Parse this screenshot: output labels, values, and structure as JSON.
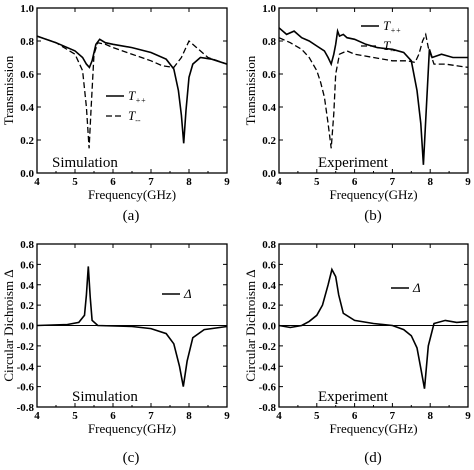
{
  "chart_data": [
    {
      "id": "a",
      "type": "line",
      "panel_label": "(a)",
      "inset_label": "Simulation",
      "xlabel": "Frequency(GHz)",
      "ylabel": "Transmission",
      "xlim": [
        4,
        9
      ],
      "ylim": [
        0,
        1.0
      ],
      "xticks": [
        "4",
        "5",
        "6",
        "7",
        "8",
        "9"
      ],
      "yticks": [
        "0.0",
        "0.2",
        "0.4",
        "0.6",
        "0.8",
        "1.0"
      ],
      "legend": [
        "T++",
        "T--"
      ],
      "legend_position": "center-right",
      "series": [
        {
          "name": "T++",
          "style": "solid",
          "points": [
            [
              4.0,
              0.83
            ],
            [
              4.5,
              0.79
            ],
            [
              5.0,
              0.74
            ],
            [
              5.2,
              0.7
            ],
            [
              5.3,
              0.66
            ],
            [
              5.38,
              0.64
            ],
            [
              5.45,
              0.68
            ],
            [
              5.55,
              0.78
            ],
            [
              5.65,
              0.81
            ],
            [
              5.8,
              0.79
            ],
            [
              6.0,
              0.78
            ],
            [
              6.5,
              0.76
            ],
            [
              7.0,
              0.73
            ],
            [
              7.4,
              0.69
            ],
            [
              7.6,
              0.63
            ],
            [
              7.72,
              0.5
            ],
            [
              7.8,
              0.35
            ],
            [
              7.86,
              0.18
            ],
            [
              7.92,
              0.38
            ],
            [
              8.0,
              0.58
            ],
            [
              8.1,
              0.66
            ],
            [
              8.3,
              0.7
            ],
            [
              8.6,
              0.69
            ],
            [
              9.0,
              0.66
            ]
          ]
        },
        {
          "name": "T--",
          "style": "dashed",
          "points": [
            [
              4.0,
              0.83
            ],
            [
              4.5,
              0.79
            ],
            [
              5.0,
              0.72
            ],
            [
              5.2,
              0.62
            ],
            [
              5.3,
              0.4
            ],
            [
              5.37,
              0.15
            ],
            [
              5.42,
              0.38
            ],
            [
              5.5,
              0.72
            ],
            [
              5.6,
              0.79
            ],
            [
              5.8,
              0.78
            ],
            [
              6.0,
              0.76
            ],
            [
              6.5,
              0.72
            ],
            [
              7.0,
              0.68
            ],
            [
              7.3,
              0.65
            ],
            [
              7.6,
              0.64
            ],
            [
              7.8,
              0.7
            ],
            [
              8.0,
              0.8
            ],
            [
              8.2,
              0.76
            ],
            [
              8.5,
              0.7
            ],
            [
              9.0,
              0.66
            ]
          ]
        }
      ]
    },
    {
      "id": "b",
      "type": "line",
      "panel_label": "(b)",
      "inset_label": "Experiment",
      "xlabel": "Frequency(GHz)",
      "ylabel": "Transmission",
      "xlim": [
        4,
        9
      ],
      "ylim": [
        0,
        1.0
      ],
      "xticks": [
        "4",
        "5",
        "6",
        "7",
        "8",
        "9"
      ],
      "yticks": [
        "0.0",
        "0.2",
        "0.4",
        "0.6",
        "0.8",
        "1.0"
      ],
      "legend": [
        "T++",
        "T--"
      ],
      "legend_position": "top-right",
      "series": [
        {
          "name": "T++",
          "style": "solid",
          "points": [
            [
              4.0,
              0.88
            ],
            [
              4.2,
              0.84
            ],
            [
              4.4,
              0.86
            ],
            [
              4.6,
              0.82
            ],
            [
              4.8,
              0.8
            ],
            [
              5.0,
              0.77
            ],
            [
              5.2,
              0.74
            ],
            [
              5.3,
              0.7
            ],
            [
              5.38,
              0.66
            ],
            [
              5.45,
              0.72
            ],
            [
              5.5,
              0.78
            ],
            [
              5.55,
              0.86
            ],
            [
              5.6,
              0.83
            ],
            [
              5.7,
              0.84
            ],
            [
              5.8,
              0.82
            ],
            [
              6.0,
              0.81
            ],
            [
              6.3,
              0.78
            ],
            [
              6.6,
              0.76
            ],
            [
              7.0,
              0.75
            ],
            [
              7.3,
              0.73
            ],
            [
              7.5,
              0.68
            ],
            [
              7.65,
              0.5
            ],
            [
              7.75,
              0.3
            ],
            [
              7.82,
              0.05
            ],
            [
              7.9,
              0.4
            ],
            [
              7.98,
              0.75
            ],
            [
              8.05,
              0.7
            ],
            [
              8.3,
              0.72
            ],
            [
              8.6,
              0.7
            ],
            [
              9.0,
              0.7
            ]
          ]
        },
        {
          "name": "T--",
          "style": "dashed",
          "points": [
            [
              4.0,
              0.82
            ],
            [
              4.3,
              0.79
            ],
            [
              4.6,
              0.75
            ],
            [
              4.8,
              0.7
            ],
            [
              5.0,
              0.62
            ],
            [
              5.1,
              0.55
            ],
            [
              5.2,
              0.46
            ],
            [
              5.3,
              0.3
            ],
            [
              5.38,
              0.15
            ],
            [
              5.45,
              0.36
            ],
            [
              5.5,
              0.6
            ],
            [
              5.6,
              0.72
            ],
            [
              5.8,
              0.74
            ],
            [
              6.0,
              0.72
            ],
            [
              6.5,
              0.7
            ],
            [
              7.0,
              0.68
            ],
            [
              7.4,
              0.68
            ],
            [
              7.6,
              0.67
            ],
            [
              7.7,
              0.72
            ],
            [
              7.8,
              0.8
            ],
            [
              7.88,
              0.84
            ],
            [
              7.95,
              0.76
            ],
            [
              8.1,
              0.66
            ],
            [
              8.4,
              0.66
            ],
            [
              9.0,
              0.64
            ]
          ]
        }
      ]
    },
    {
      "id": "c",
      "type": "line",
      "panel_label": "(c)",
      "inset_label": "Simulation",
      "xlabel": "Frequency(GHz)",
      "ylabel": "Circular Dichroism Δ",
      "xlim": [
        4,
        9
      ],
      "ylim": [
        -0.8,
        0.8
      ],
      "xticks": [
        "4",
        "5",
        "6",
        "7",
        "8",
        "9"
      ],
      "yticks": [
        "-0.8",
        "-0.6",
        "-0.4",
        "-0.2",
        "0.0",
        "0.2",
        "0.4",
        "0.6",
        "0.8"
      ],
      "legend": [
        "Δ"
      ],
      "legend_position": "top-right",
      "series": [
        {
          "name": "Δ",
          "style": "solid",
          "points": [
            [
              4.0,
              0.0
            ],
            [
              4.8,
              0.01
            ],
            [
              5.1,
              0.03
            ],
            [
              5.25,
              0.1
            ],
            [
              5.3,
              0.3
            ],
            [
              5.35,
              0.58
            ],
            [
              5.4,
              0.28
            ],
            [
              5.45,
              0.05
            ],
            [
              5.6,
              0.0
            ],
            [
              6.5,
              -0.01
            ],
            [
              7.0,
              -0.03
            ],
            [
              7.4,
              -0.08
            ],
            [
              7.6,
              -0.18
            ],
            [
              7.75,
              -0.4
            ],
            [
              7.85,
              -0.6
            ],
            [
              7.95,
              -0.35
            ],
            [
              8.1,
              -0.12
            ],
            [
              8.4,
              -0.04
            ],
            [
              9.0,
              -0.01
            ]
          ]
        }
      ]
    },
    {
      "id": "d",
      "type": "line",
      "panel_label": "(d)",
      "inset_label": "Experiment",
      "xlabel": "Frequency(GHz)",
      "ylabel": "Circular Dichroism Δ",
      "xlim": [
        4,
        9
      ],
      "ylim": [
        -0.8,
        0.8
      ],
      "xticks": [
        "4",
        "5",
        "6",
        "7",
        "8",
        "9"
      ],
      "yticks": [
        "-0.8",
        "-0.6",
        "-0.4",
        "-0.2",
        "0.0",
        "0.2",
        "0.4",
        "0.6",
        "0.8"
      ],
      "legend": [
        "Δ"
      ],
      "legend_position": "top-right",
      "series": [
        {
          "name": "Δ",
          "style": "solid",
          "points": [
            [
              4.0,
              0.0
            ],
            [
              4.3,
              -0.02
            ],
            [
              4.6,
              0.0
            ],
            [
              4.8,
              0.04
            ],
            [
              5.0,
              0.1
            ],
            [
              5.15,
              0.2
            ],
            [
              5.3,
              0.4
            ],
            [
              5.4,
              0.55
            ],
            [
              5.5,
              0.48
            ],
            [
              5.58,
              0.3
            ],
            [
              5.7,
              0.12
            ],
            [
              6.0,
              0.05
            ],
            [
              6.5,
              0.02
            ],
            [
              7.0,
              0.0
            ],
            [
              7.3,
              -0.04
            ],
            [
              7.5,
              -0.1
            ],
            [
              7.65,
              -0.22
            ],
            [
              7.75,
              -0.42
            ],
            [
              7.85,
              -0.62
            ],
            [
              7.95,
              -0.2
            ],
            [
              8.1,
              0.02
            ],
            [
              8.4,
              0.05
            ],
            [
              8.7,
              0.03
            ],
            [
              9.0,
              0.04
            ]
          ]
        }
      ]
    }
  ]
}
